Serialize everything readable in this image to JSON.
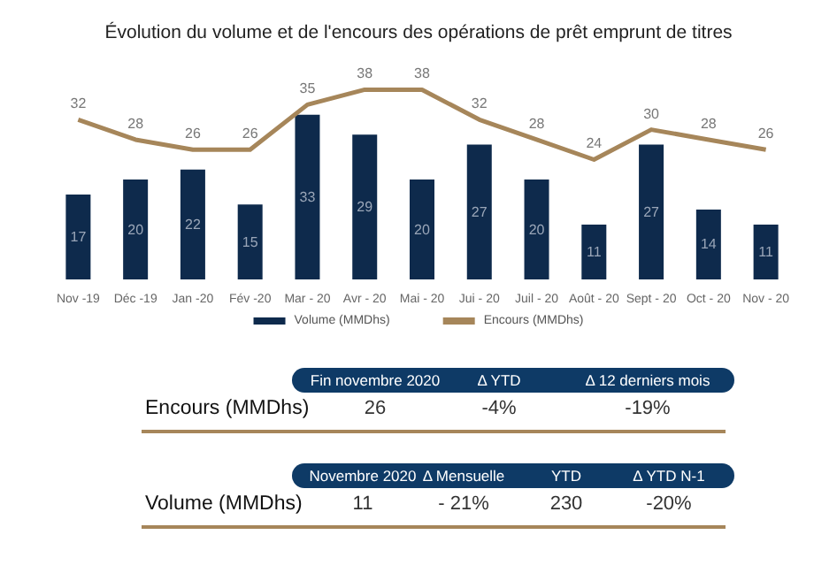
{
  "chart_data": [
    {
      "type": "bar",
      "title": "Évolution du volume et de l'encours des opérations de prêt emprunt de titres",
      "categories": [
        "Nov -19",
        "Déc -19",
        "Jan -20",
        "Fév -20",
        "Mar - 20",
        "Avr - 20",
        "Mai - 20",
        "Jui - 20",
        "Juil - 20",
        "Août - 20",
        "Sept - 20",
        "Oct - 20",
        "Nov - 20"
      ],
      "series": [
        {
          "name": "Volume (MMDhs)",
          "type": "bar",
          "color": "#0e2a4c",
          "values": [
            17,
            20,
            22,
            15,
            33,
            29,
            20,
            27,
            20,
            11,
            27,
            14,
            11
          ]
        },
        {
          "name": "Encours (MMDhs)",
          "type": "line",
          "color": "#a6865a",
          "values": [
            32,
            28,
            26,
            26,
            35,
            38,
            38,
            32,
            28,
            24,
            30,
            28,
            26
          ]
        }
      ],
      "data_labels": true,
      "legend": "bottom",
      "marker": "none"
    },
    {
      "type": "other",
      "annotations": [
        "Fin novembre 2020",
        "Δ YTD",
        "Δ 12 derniers mois",
        "Encours (MMDhs)",
        "26",
        "-4%",
        "-19%",
        "Novembre 2020",
        "Δ Mensuelle",
        "YTD",
        "Δ YTD N-1",
        "Volume (MMDhs)",
        "11",
        "- 21%",
        "230",
        "-20%"
      ]
    }
  ]
}
